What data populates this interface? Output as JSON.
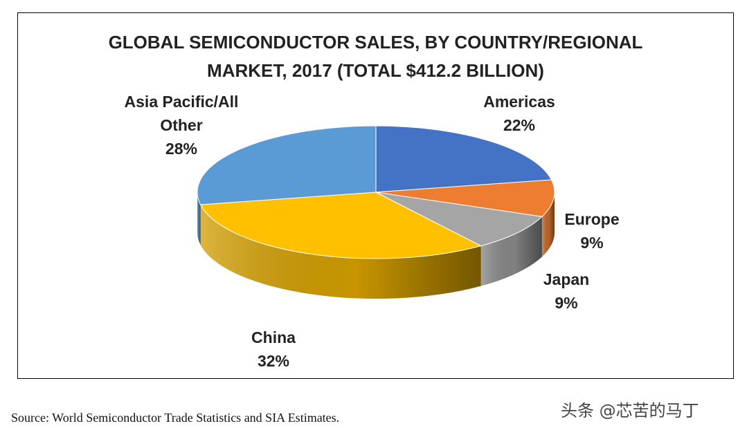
{
  "chart_data": {
    "type": "pie",
    "title_line1": "GLOBAL SEMICONDUCTOR SALES, BY COUNTRY/REGIONAL",
    "title_line2": "MARKET, 2017 (TOTAL $412.2 BILLION)",
    "slices": [
      {
        "label_lines": [
          "Americas"
        ],
        "pct_text": "22%",
        "value": 22,
        "color": "#4472c4"
      },
      {
        "label_lines": [
          "Europe"
        ],
        "pct_text": "9%",
        "value": 9,
        "color": "#ed7d31"
      },
      {
        "label_lines": [
          "Japan"
        ],
        "pct_text": "9%",
        "value": 9,
        "color": "#a5a5a5"
      },
      {
        "label_lines": [
          "China"
        ],
        "pct_text": "32%",
        "value": 32,
        "color": "#ffc000"
      },
      {
        "label_lines": [
          "Asia Pacific/All",
          "Other"
        ],
        "pct_text": "28%",
        "value": 28,
        "color": "#5b9bd5"
      }
    ]
  },
  "source": "Source: World Semiconductor Trade Statistics and SIA Estimates.",
  "watermark": "头条 @芯苦的马丁"
}
